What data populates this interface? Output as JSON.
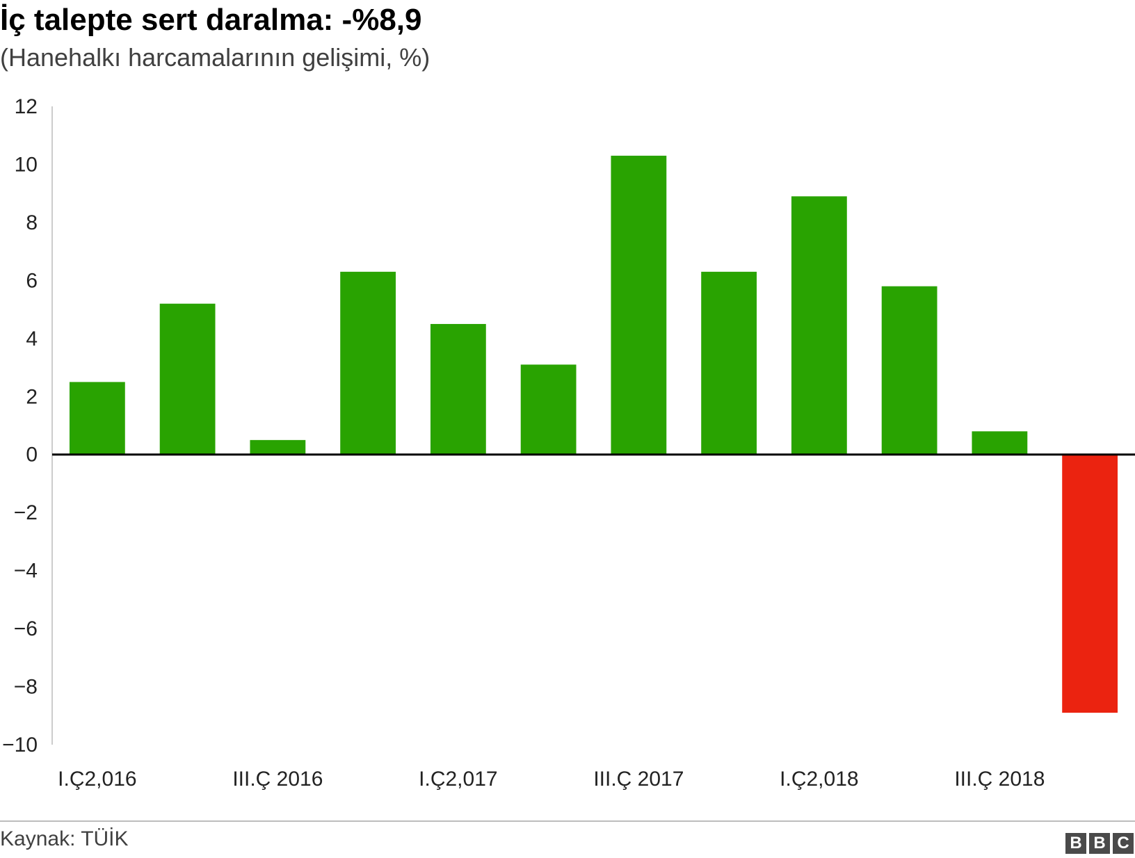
{
  "header": {
    "title": "İç talepte sert daralma: -%8,9",
    "subtitle": "(Hanehalkı harcamalarının gelişimi, %)"
  },
  "footer": {
    "source": "Kaynak: TÜİK",
    "logo_letters": [
      "B",
      "B",
      "C"
    ]
  },
  "colors": {
    "positive": "#29a301",
    "negative": "#eb2310",
    "zero_line": "#000000",
    "axis": "#cccccc"
  },
  "chart_data": {
    "type": "bar",
    "title": "İç talepte sert daralma: -%8,9",
    "subtitle": "(Hanehalkı harcamalarının gelişimi, %)",
    "xlabel": "",
    "ylabel": "",
    "ylim": [
      -10,
      12
    ],
    "yticks": [
      12,
      10,
      8,
      6,
      4,
      2,
      0,
      -2,
      -4,
      -6,
      -8,
      -10
    ],
    "ytick_labels": [
      "12",
      "10",
      "8",
      "6",
      "4",
      "2",
      "0",
      "−2",
      "−4",
      "−6",
      "−8",
      "−10"
    ],
    "xtick_labels": [
      {
        "index": 0,
        "label": "I.Ç2,016"
      },
      {
        "index": 2,
        "label": "III.Ç 2016"
      },
      {
        "index": 4,
        "label": "I.Ç2,017"
      },
      {
        "index": 6,
        "label": "III.Ç 2017"
      },
      {
        "index": 8,
        "label": "I.Ç2,018"
      },
      {
        "index": 10,
        "label": "III.Ç 2018"
      }
    ],
    "values": [
      2.5,
      5.2,
      0.5,
      6.3,
      4.5,
      3.1,
      10.3,
      6.3,
      8.9,
      5.8,
      0.8,
      -8.9
    ],
    "grid": false,
    "legend": "none"
  }
}
